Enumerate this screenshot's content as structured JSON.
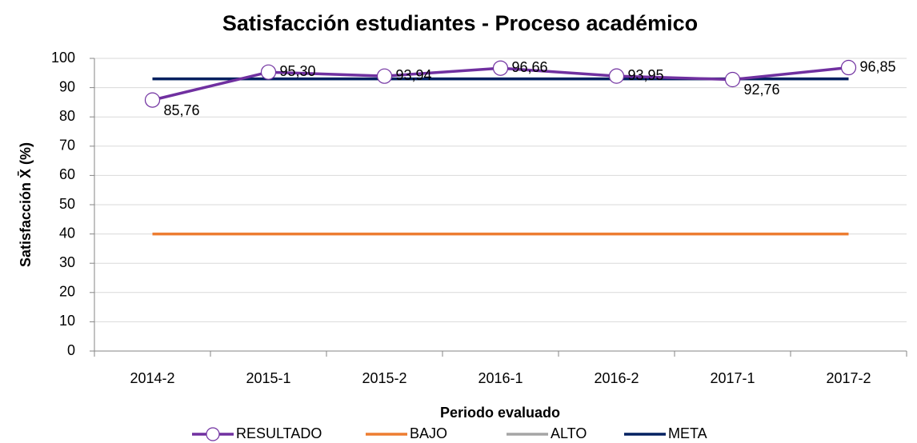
{
  "chart_data": {
    "type": "line",
    "title": "Satisfacción estudiantes - Proceso académico",
    "xlabel": "Periodo evaluado",
    "ylabel": "Satisfacción X̄ (%)",
    "categories": [
      "2014-2",
      "2015-1",
      "2015-2",
      "2016-1",
      "2016-2",
      "2017-1",
      "2017-2"
    ],
    "series": [
      {
        "name": "RESULTADO",
        "color": "#7030a0",
        "marker": true,
        "values": [
          85.76,
          95.3,
          93.94,
          96.66,
          93.95,
          92.76,
          96.85
        ],
        "value_labels": [
          "85,76",
          "95,30",
          "93,94",
          "96,66",
          "93,95",
          "92,76",
          "96,85"
        ]
      },
      {
        "name": "BAJO",
        "color": "#ed7d31",
        "values": [
          40,
          40,
          40,
          40,
          40,
          40,
          40
        ]
      },
      {
        "name": "ALTO",
        "color": "#a5a5a5",
        "values": [
          93,
          93,
          93,
          93,
          93,
          93,
          93
        ]
      },
      {
        "name": "META",
        "color": "#002060",
        "values": [
          93,
          93,
          93,
          93,
          93,
          93,
          93
        ]
      }
    ],
    "ylim": [
      0,
      100
    ],
    "yticks": [
      0,
      10,
      20,
      30,
      40,
      50,
      60,
      70,
      80,
      90,
      100
    ],
    "grid": true,
    "legend": "bottom"
  }
}
